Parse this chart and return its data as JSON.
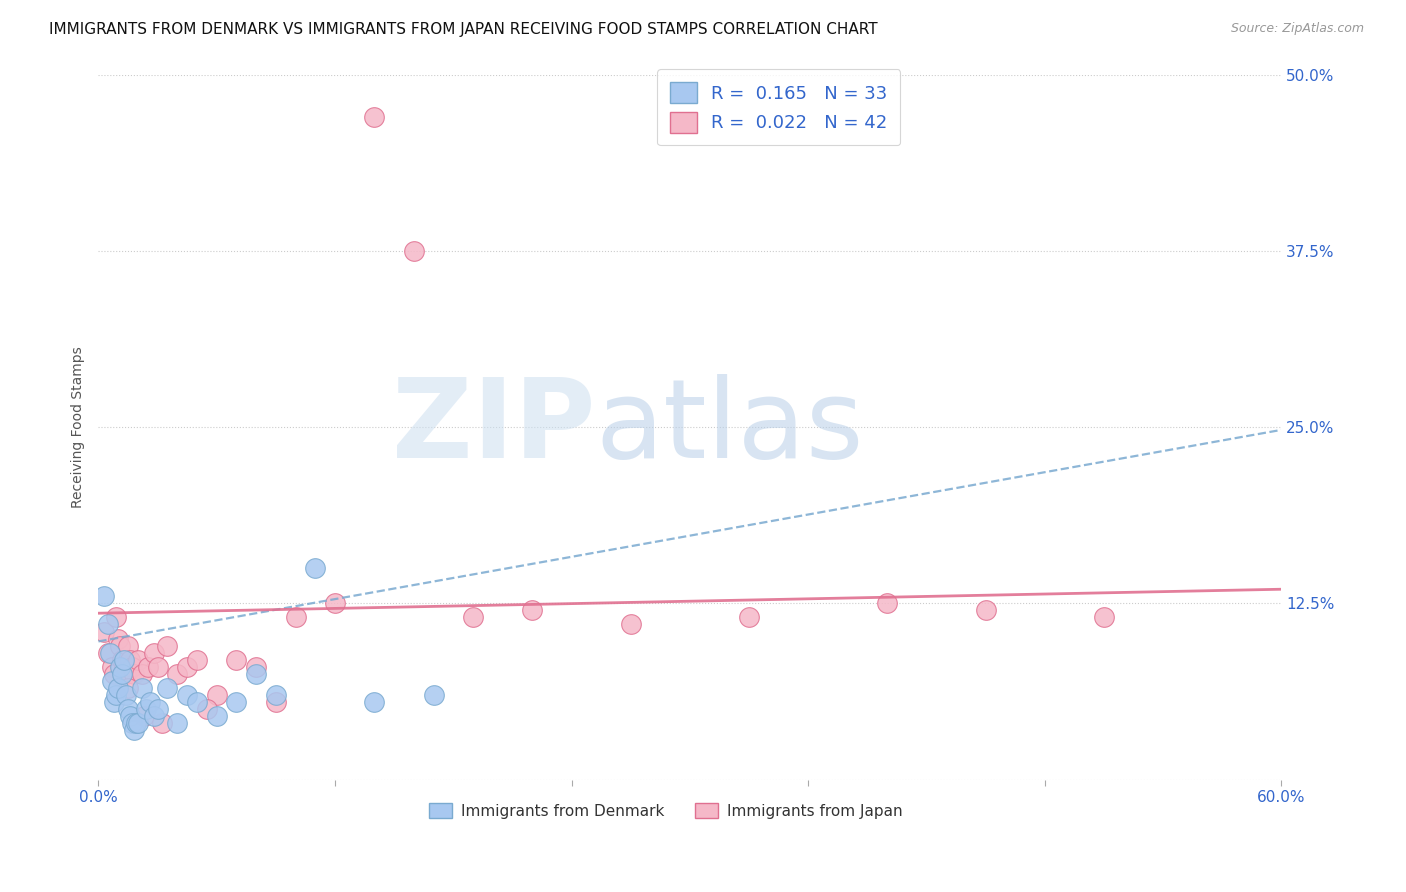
{
  "title": "IMMIGRANTS FROM DENMARK VS IMMIGRANTS FROM JAPAN RECEIVING FOOD STAMPS CORRELATION CHART",
  "source": "Source: ZipAtlas.com",
  "ylabel": "Receiving Food Stamps",
  "xlim": [
    0.0,
    0.6
  ],
  "ylim": [
    0.0,
    0.5
  ],
  "xticks": [
    0.0,
    0.12,
    0.24,
    0.36,
    0.48,
    0.6
  ],
  "xtick_labels": [
    "0.0%",
    "",
    "",
    "",
    "",
    "60.0%"
  ],
  "yticks": [
    0.0,
    0.125,
    0.25,
    0.375,
    0.5
  ],
  "right_ytick_labels": [
    "",
    "12.5%",
    "25.0%",
    "37.5%",
    "50.0%"
  ],
  "series1_color": "#a8c8f0",
  "series1_edge_color": "#7aaad0",
  "series2_color": "#f5b8c8",
  "series2_edge_color": "#e07090",
  "series1_R": 0.165,
  "series1_N": 33,
  "series2_R": 0.022,
  "series2_N": 42,
  "legend_color": "#3366cc",
  "series1_x": [
    0.003,
    0.005,
    0.006,
    0.007,
    0.008,
    0.009,
    0.01,
    0.011,
    0.012,
    0.013,
    0.014,
    0.015,
    0.016,
    0.017,
    0.018,
    0.019,
    0.02,
    0.022,
    0.024,
    0.026,
    0.028,
    0.03,
    0.035,
    0.04,
    0.045,
    0.05,
    0.06,
    0.07,
    0.08,
    0.09,
    0.11,
    0.14,
    0.17
  ],
  "series1_y": [
    0.13,
    0.11,
    0.09,
    0.07,
    0.055,
    0.06,
    0.065,
    0.08,
    0.075,
    0.085,
    0.06,
    0.05,
    0.045,
    0.04,
    0.035,
    0.04,
    0.04,
    0.065,
    0.05,
    0.055,
    0.045,
    0.05,
    0.065,
    0.04,
    0.06,
    0.055,
    0.045,
    0.055,
    0.075,
    0.06,
    0.15,
    0.055,
    0.06
  ],
  "series2_x": [
    0.003,
    0.005,
    0.007,
    0.008,
    0.009,
    0.01,
    0.011,
    0.012,
    0.013,
    0.014,
    0.015,
    0.016,
    0.017,
    0.018,
    0.02,
    0.022,
    0.025,
    0.028,
    0.03,
    0.035,
    0.04,
    0.045,
    0.05,
    0.06,
    0.07,
    0.08,
    0.09,
    0.1,
    0.12,
    0.14,
    0.16,
    0.19,
    0.22,
    0.27,
    0.33,
    0.4,
    0.45,
    0.51,
    0.015,
    0.023,
    0.032,
    0.055
  ],
  "series2_y": [
    0.105,
    0.09,
    0.08,
    0.075,
    0.115,
    0.1,
    0.095,
    0.085,
    0.08,
    0.075,
    0.095,
    0.085,
    0.08,
    0.075,
    0.085,
    0.075,
    0.08,
    0.09,
    0.08,
    0.095,
    0.075,
    0.08,
    0.085,
    0.06,
    0.085,
    0.08,
    0.055,
    0.115,
    0.125,
    0.47,
    0.375,
    0.115,
    0.12,
    0.11,
    0.115,
    0.125,
    0.12,
    0.115,
    0.065,
    0.045,
    0.04,
    0.05
  ],
  "grid_color": "#cccccc",
  "bg_color": "#ffffff",
  "title_fontsize": 11,
  "axis_tick_color": "#3366cc"
}
